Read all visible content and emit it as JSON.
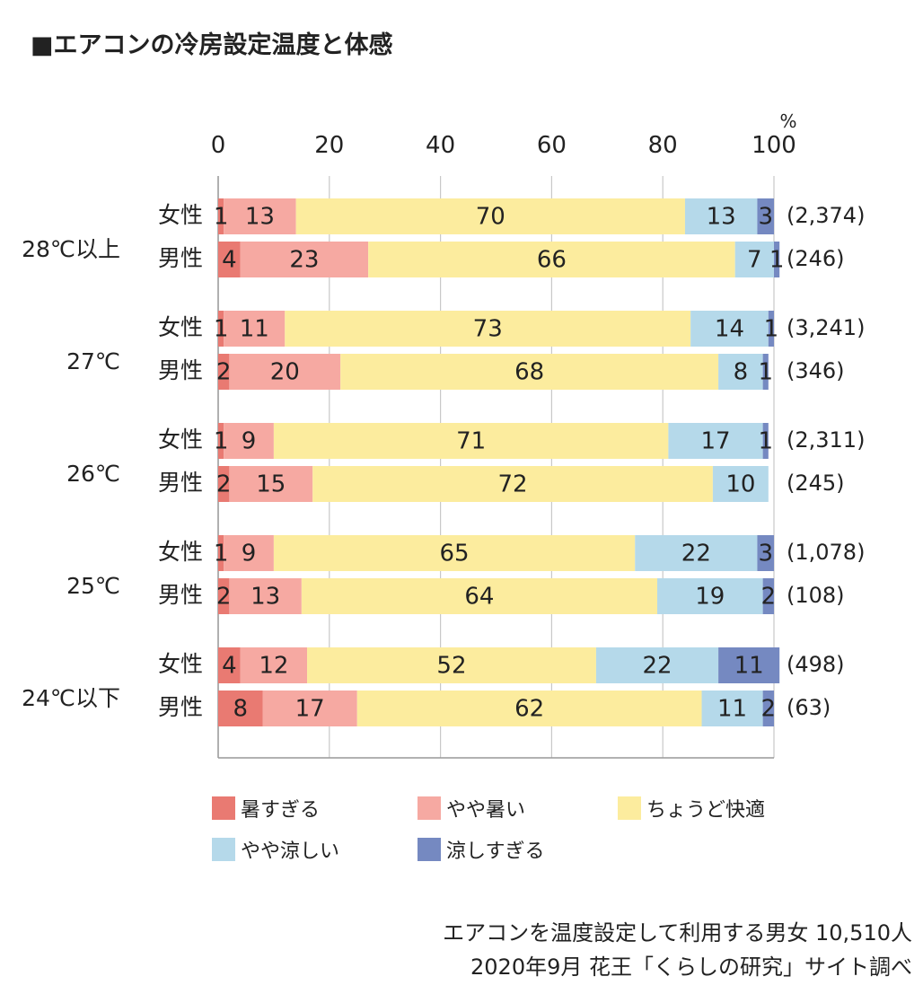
{
  "title": "■エアコンの冷房設定温度と体感",
  "chart_data": {
    "type": "bar",
    "orientation": "horizontal",
    "stacked": true,
    "unit": "%",
    "xlim": [
      0,
      100
    ],
    "xticks": [
      0,
      20,
      40,
      60,
      80,
      100
    ],
    "categories": [
      {
        "label": "28℃以上",
        "rows": [
          {
            "label": "女性",
            "values": [
              1,
              13,
              70,
              13,
              3
            ],
            "n": "(2,374)"
          },
          {
            "label": "男性",
            "values": [
              4,
              23,
              66,
              7,
              1
            ],
            "n": "(246)"
          }
        ]
      },
      {
        "label": "27℃",
        "rows": [
          {
            "label": "女性",
            "values": [
              1,
              11,
              73,
              14,
              1
            ],
            "n": "(3,241)"
          },
          {
            "label": "男性",
            "values": [
              2,
              20,
              68,
              8,
              1
            ],
            "n": "(346)"
          }
        ]
      },
      {
        "label": "26℃",
        "rows": [
          {
            "label": "女性",
            "values": [
              1,
              9,
              71,
              17,
              1
            ],
            "n": "(2,311)"
          },
          {
            "label": "男性",
            "values": [
              2,
              15,
              72,
              10,
              0
            ],
            "n": "(245)"
          }
        ]
      },
      {
        "label": "25℃",
        "rows": [
          {
            "label": "女性",
            "values": [
              1,
              9,
              65,
              22,
              3
            ],
            "n": "(1,078)"
          },
          {
            "label": "男性",
            "values": [
              2,
              13,
              64,
              19,
              2
            ],
            "n": "(108)"
          }
        ]
      },
      {
        "label": "24℃以下",
        "rows": [
          {
            "label": "女性",
            "values": [
              4,
              12,
              52,
              22,
              11
            ],
            "n": "(498)"
          },
          {
            "label": "男性",
            "values": [
              8,
              17,
              62,
              11,
              2
            ],
            "n": "(63)"
          }
        ]
      }
    ],
    "series": [
      {
        "name": "暑すぎる",
        "color": "#e97a72"
      },
      {
        "name": "やや暑い",
        "color": "#f6a9a2"
      },
      {
        "name": "ちょうど快適",
        "color": "#fcec9e"
      },
      {
        "name": "やや涼しい",
        "color": "#b5d9ea"
      },
      {
        "name": "涼しすぎる",
        "color": "#7589c1"
      }
    ],
    "legend": "bottom"
  },
  "source": {
    "line1": "エアコンを温度設定して利用する男女 10,510人",
    "line2": "2020年9月 花王「くらしの研究」サイト調べ"
  }
}
